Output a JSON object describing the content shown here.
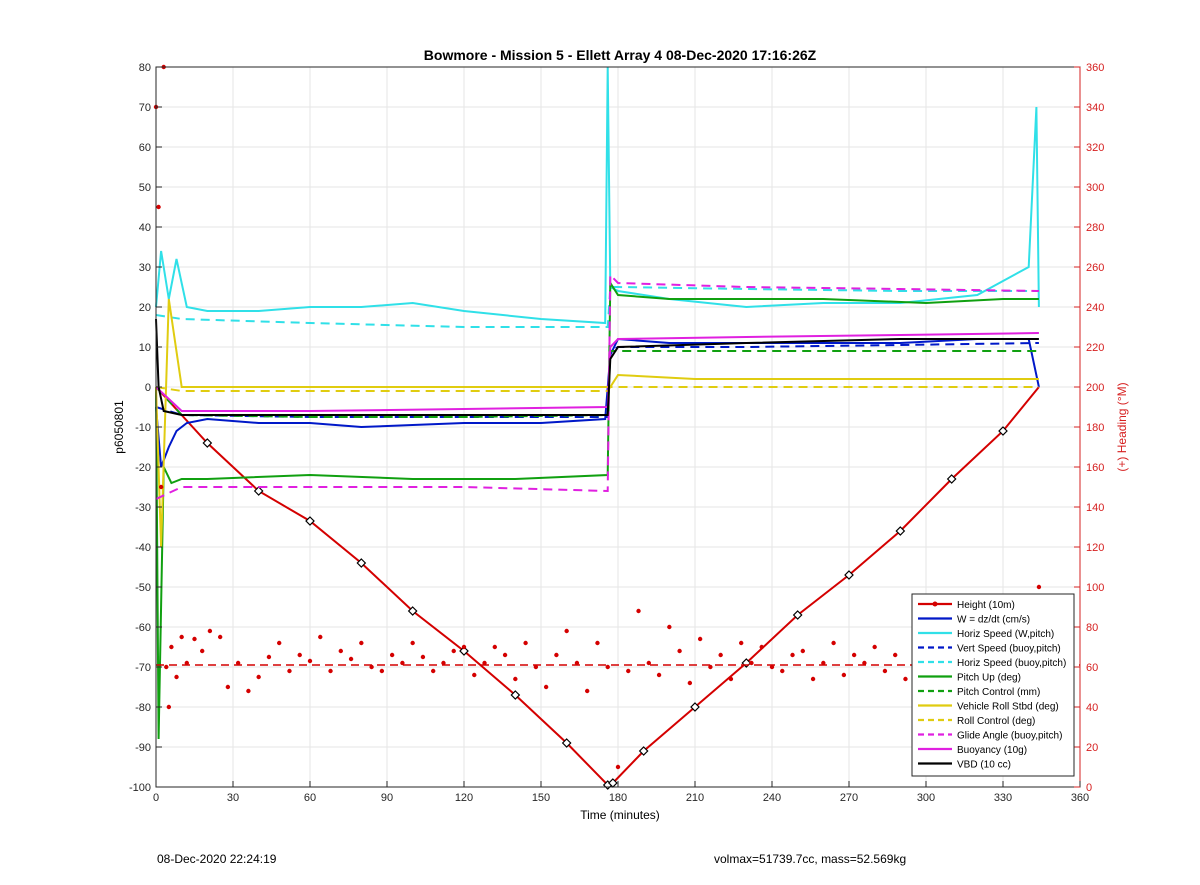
{
  "footer": {
    "left": "08-Dec-2020 22:24:19",
    "right": "volmax=51739.7cc, mass=52.569kg"
  },
  "chart_data": {
    "type": "line",
    "title": "Bowmore - Mission 5 - Ellett Array 4 08-Dec-2020 17:16:26Z",
    "xlabel": "Time (minutes)",
    "ylabel_left": "p6050801",
    "ylabel_right": "(+) Heading (°M)",
    "xlim": [
      0,
      360
    ],
    "ylim_left": [
      -100,
      80
    ],
    "ylim_right": [
      0,
      360
    ],
    "x_ticks": [
      0,
      30,
      60,
      90,
      120,
      150,
      180,
      210,
      240,
      270,
      300,
      330,
      360
    ],
    "y_ticks_left": [
      -100,
      -90,
      -80,
      -70,
      -60,
      -50,
      -40,
      -30,
      -20,
      -10,
      0,
      10,
      20,
      30,
      40,
      50,
      60,
      70,
      80
    ],
    "y_ticks_right": [
      0,
      20,
      40,
      60,
      80,
      100,
      120,
      140,
      160,
      180,
      200,
      220,
      240,
      260,
      280,
      300,
      320,
      340,
      360
    ],
    "grid": true,
    "legend_position": "bottom-right",
    "colors": {
      "right_axis": "#d62020"
    },
    "series": [
      {
        "name": "Height (10m)",
        "color": "#d40000",
        "style": "solid-marker",
        "x": [
          0,
          20,
          40,
          60,
          80,
          100,
          120,
          140,
          160,
          176,
          178,
          190,
          210,
          230,
          250,
          270,
          290,
          310,
          330,
          344
        ],
        "y": [
          0,
          -14,
          -26,
          -33.5,
          -44,
          -56,
          -66,
          -77,
          -89,
          -99.5,
          -99,
          -91,
          -80,
          -69,
          -57,
          -47,
          -36,
          -23,
          -11,
          0
        ]
      },
      {
        "name": "W = dz/dt (cm/s)",
        "color": "#0018c8",
        "style": "solid",
        "x": [
          0,
          2,
          5,
          8,
          12,
          20,
          40,
          60,
          80,
          100,
          120,
          150,
          175,
          177,
          180,
          200,
          230,
          260,
          290,
          320,
          340,
          344
        ],
        "y": [
          -5,
          -20,
          -15,
          -11,
          -9,
          -8,
          -9,
          -9,
          -10,
          -9.5,
          -9,
          -9,
          -8,
          8,
          12,
          11,
          11,
          11,
          11,
          12,
          12,
          0
        ]
      },
      {
        "name": "Horiz Speed (W,pitch)",
        "color": "#30e0e8",
        "style": "solid",
        "x": [
          0,
          2,
          5,
          8,
          12,
          20,
          40,
          60,
          80,
          100,
          120,
          150,
          175,
          176,
          177,
          180,
          200,
          230,
          260,
          290,
          320,
          340,
          343,
          344
        ],
        "y": [
          20,
          34,
          22,
          32,
          20,
          19,
          19,
          20,
          20,
          21,
          19,
          17,
          16,
          80,
          25,
          24,
          22,
          20,
          21,
          21,
          23,
          30,
          70,
          20
        ]
      },
      {
        "name": "Vert Speed (buoy,pitch)",
        "color": "#0018c8",
        "style": "dashed",
        "x": [
          0,
          10,
          60,
          120,
          176,
          177,
          180,
          230,
          290,
          344
        ],
        "y": [
          -5,
          -7,
          -7.5,
          -7.5,
          -7.5,
          9,
          10,
          10,
          10.5,
          11
        ]
      },
      {
        "name": "Horiz Speed (buoy,pitch)",
        "color": "#30e0e8",
        "style": "dashed",
        "x": [
          0,
          10,
          60,
          120,
          176,
          177,
          180,
          230,
          290,
          344
        ],
        "y": [
          18,
          17,
          16,
          15,
          15,
          25,
          25,
          24.5,
          24,
          24
        ]
      },
      {
        "name": "Pitch Up (deg)",
        "color": "#10a010",
        "style": "solid",
        "x": [
          0,
          1,
          3,
          6,
          10,
          20,
          60,
          100,
          140,
          176,
          177,
          180,
          200,
          260,
          300,
          330,
          344
        ],
        "y": [
          0,
          -88,
          -20,
          -24,
          -23,
          -23,
          -22,
          -23,
          -23,
          -22,
          26,
          23,
          22,
          22,
          21,
          22,
          22
        ]
      },
      {
        "name": "Pitch Control (mm)",
        "color": "#10a010",
        "style": "dashed",
        "x": [
          0,
          10,
          60,
          120,
          176,
          177,
          180,
          230,
          290,
          344
        ],
        "y": [
          0,
          -7,
          -7.5,
          -7.5,
          -7,
          9,
          9,
          9,
          9,
          9
        ]
      },
      {
        "name": "Vehicle Roll Stbd (deg)",
        "color": "#e0cc10",
        "style": "solid",
        "x": [
          0,
          2,
          5,
          10,
          30,
          60,
          100,
          140,
          176,
          177,
          180,
          210,
          250,
          300,
          330,
          344
        ],
        "y": [
          0,
          -40,
          22,
          0,
          0,
          0,
          0,
          0,
          0,
          0,
          3,
          2,
          2,
          2,
          2,
          2
        ]
      },
      {
        "name": "Roll Control (deg)",
        "color": "#e0cc10",
        "style": "dashed",
        "x": [
          0,
          10,
          60,
          120,
          176,
          177,
          180,
          230,
          290,
          344
        ],
        "y": [
          0,
          -1,
          -1,
          -1,
          -1,
          0,
          0,
          0,
          0,
          0
        ]
      },
      {
        "name": "Glide Angle (buoy,pitch)",
        "color": "#e020e0",
        "style": "dashed",
        "x": [
          0,
          10,
          60,
          120,
          176,
          177,
          180,
          230,
          290,
          344
        ],
        "y": [
          -28,
          -25,
          -25,
          -25,
          -26,
          28,
          26,
          25,
          24.5,
          24
        ]
      },
      {
        "name": "Buoyancy (10g)",
        "color": "#e020e0",
        "style": "solid",
        "x": [
          0,
          10,
          60,
          120,
          176,
          177,
          180,
          230,
          290,
          344
        ],
        "y": [
          0,
          -6,
          -6,
          -5.5,
          -5,
          10,
          12,
          12.5,
          13,
          13.5
        ]
      },
      {
        "name": "VBD (10 cc)",
        "color": "#000000",
        "style": "solid",
        "x": [
          0,
          1,
          3,
          10,
          60,
          120,
          176,
          177,
          180,
          230,
          290,
          344
        ],
        "y": [
          17,
          0,
          -6,
          -7,
          -7,
          -7,
          -7,
          7,
          10,
          11,
          12,
          12
        ]
      }
    ],
    "heading_series": {
      "axis": "right",
      "color": "#d40000",
      "mean": 61,
      "x": [
        0,
        1,
        2,
        3,
        4,
        5,
        6,
        8,
        10,
        12,
        15,
        18,
        21,
        25,
        28,
        32,
        36,
        40,
        44,
        48,
        52,
        56,
        60,
        64,
        68,
        72,
        76,
        80,
        84,
        88,
        92,
        96,
        100,
        104,
        108,
        112,
        116,
        120,
        124,
        128,
        132,
        136,
        140,
        144,
        148,
        152,
        156,
        160,
        164,
        168,
        172,
        176,
        180,
        184,
        188,
        192,
        196,
        200,
        204,
        208,
        212,
        216,
        220,
        224,
        228,
        232,
        236,
        240,
        244,
        248,
        252,
        256,
        260,
        264,
        268,
        272,
        276,
        280,
        284,
        288,
        292,
        296,
        300,
        304,
        308,
        312,
        316,
        320,
        324,
        328,
        332,
        336,
        340,
        344
      ],
      "y": [
        340,
        290,
        150,
        360,
        60,
        40,
        70,
        55,
        75,
        62,
        74,
        68,
        78,
        75,
        50,
        62,
        48,
        55,
        65,
        72,
        58,
        66,
        63,
        75,
        58,
        68,
        64,
        72,
        60,
        58,
        66,
        62,
        72,
        65,
        58,
        62,
        68,
        70,
        56,
        62,
        70,
        66,
        54,
        72,
        60,
        50,
        66,
        78,
        62,
        48,
        72,
        60,
        10,
        58,
        88,
        62,
        56,
        80,
        68,
        52,
        74,
        60,
        66,
        54,
        72,
        62,
        70,
        60,
        58,
        66,
        68,
        54,
        62,
        72,
        56,
        66,
        62,
        70,
        58,
        66,
        54,
        62,
        70,
        58,
        64,
        74,
        62,
        66,
        70,
        58,
        68,
        72,
        70,
        100
      ]
    }
  }
}
